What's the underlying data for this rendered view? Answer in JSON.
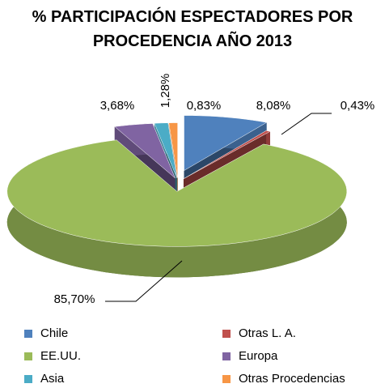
{
  "chart_data": {
    "type": "pie",
    "title": "% PARTICIPACIÓN ESPECTADORES POR PROCEDENCIA AÑO 2013",
    "categories": [
      "Chile",
      "Otras L. A.",
      "EE.UU.",
      "Europa",
      "Asia",
      "Otras Procedencias"
    ],
    "values": [
      8.08,
      0.43,
      85.7,
      3.68,
      1.28,
      0.83
    ],
    "value_labels": [
      "8,08%",
      "0,43%",
      "85,70%",
      "3,68%",
      "1,28%",
      "0,83%"
    ],
    "colors": [
      "#4f81bd",
      "#c0504d",
      "#9bbb59",
      "#8064a2",
      "#4bacc6",
      "#f79646"
    ],
    "legend": "bottom"
  }
}
